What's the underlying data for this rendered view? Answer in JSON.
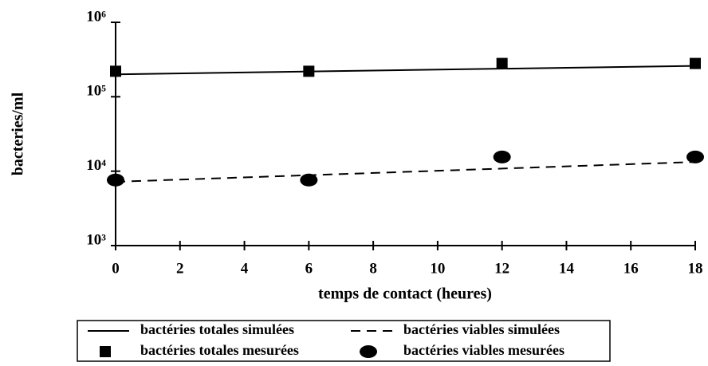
{
  "chart_data": {
    "type": "line",
    "xlabel": "temps de contact (heures)",
    "ylabel": "bacteries/ml",
    "xlim": [
      0,
      18
    ],
    "xticks": [
      0,
      2,
      4,
      6,
      8,
      10,
      12,
      14,
      16,
      18
    ],
    "ylim": [
      1000,
      1000000
    ],
    "log_y": true,
    "yticks": [
      {
        "value": 1000,
        "label": "10³"
      },
      {
        "value": 10000,
        "label": "10⁴"
      },
      {
        "value": 100000,
        "label": "10⁵"
      },
      {
        "value": 1000000,
        "label": "10⁶"
      }
    ],
    "legend": "bottom",
    "series": [
      {
        "name": "bactéries totales simulées",
        "color": "#000000",
        "linestyle": "solid",
        "x": [
          0,
          18
        ],
        "values": [
          200000,
          260000
        ]
      },
      {
        "name": "bactéries viables simulées",
        "color": "#000000",
        "linestyle": "dashed",
        "x": [
          0,
          18
        ],
        "values": [
          7200,
          13300
        ]
      },
      {
        "name": "bactéries totales mesurées",
        "color": "#000000",
        "marker": "square",
        "x": [
          0,
          6,
          12,
          18
        ],
        "values": [
          220000,
          220000,
          280000,
          280000
        ]
      },
      {
        "name": "bactéries viables mesurées",
        "color": "#000000",
        "marker": "circle",
        "x": [
          0,
          6,
          12,
          18
        ],
        "values": [
          7600,
          7600,
          15500,
          15500
        ]
      }
    ]
  }
}
